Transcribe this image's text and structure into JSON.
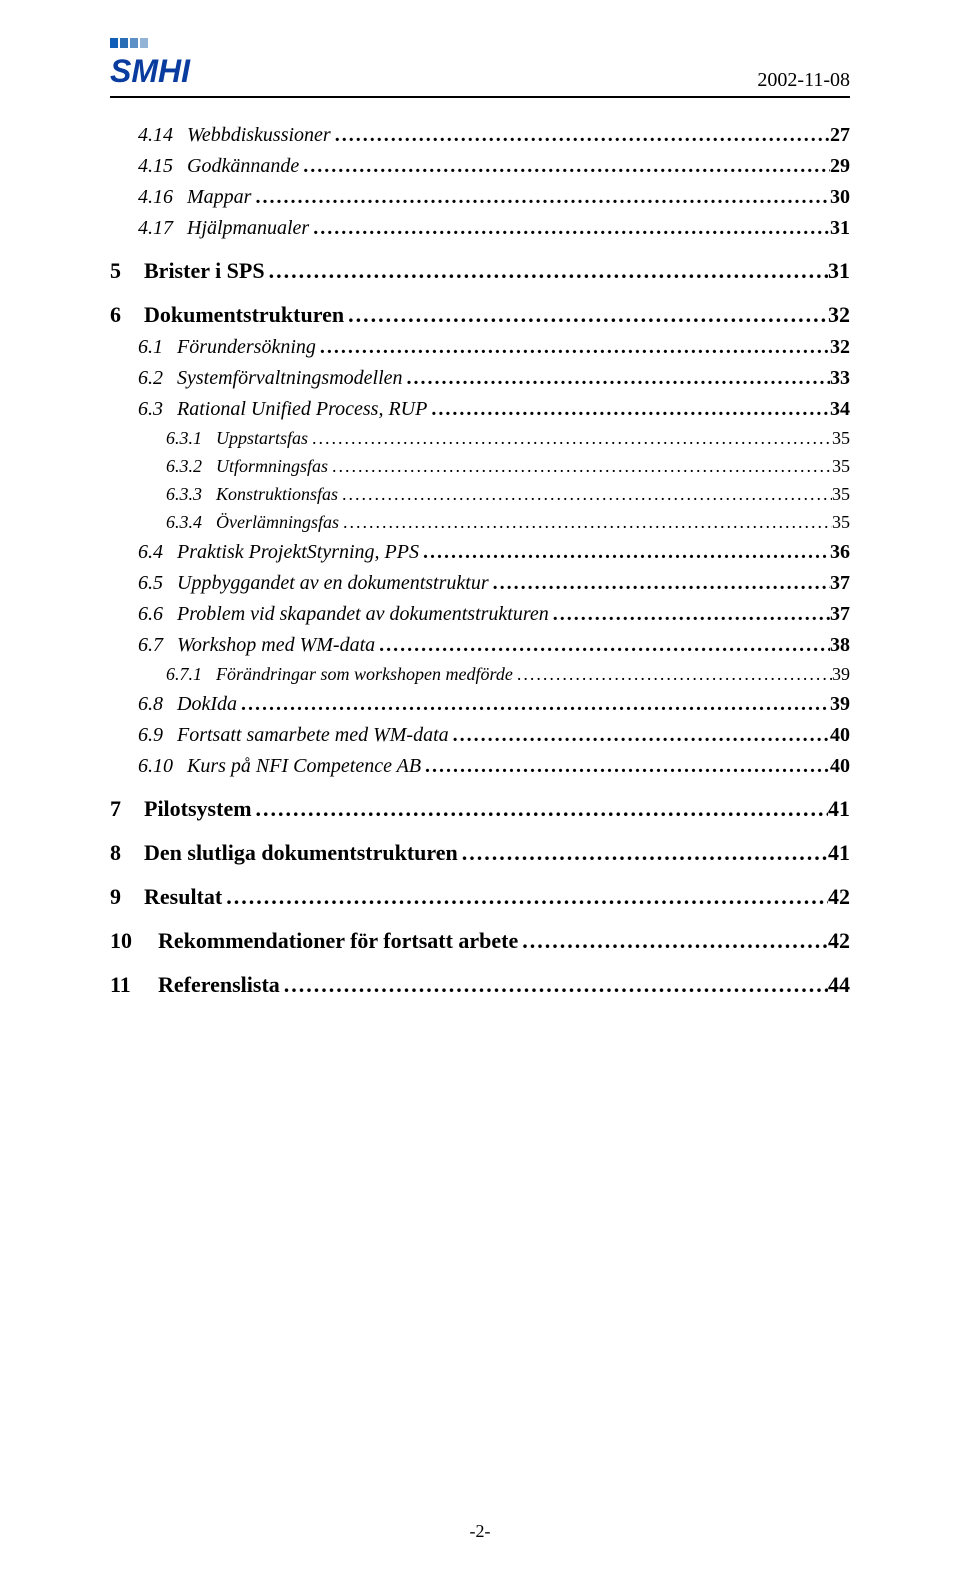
{
  "header": {
    "date": "2002-11-08",
    "logo_text": "SMHI",
    "logo_colors": {
      "letters": "#0a3ca0",
      "bars": [
        "#115fb8",
        "#2a6fb5",
        "#5c90c7",
        "#92b2d6"
      ]
    }
  },
  "toc": [
    {
      "level": 2,
      "num": "4.14",
      "title": "Webbdiskussioner",
      "page": "27",
      "style": "sub"
    },
    {
      "level": 2,
      "num": "4.15",
      "title": "Godkännande",
      "page": "29",
      "style": "sub"
    },
    {
      "level": 2,
      "num": "4.16",
      "title": "Mappar",
      "page": "30",
      "style": "sub"
    },
    {
      "level": 2,
      "num": "4.17",
      "title": "Hjälpmanualer",
      "page": "31",
      "style": "sub"
    },
    {
      "level": 1,
      "num": "5",
      "title": "Brister i SPS",
      "page": "31",
      "style": "h1"
    },
    {
      "level": 1,
      "num": "6",
      "title": "Dokumentstrukturen",
      "page": "32",
      "style": "h1"
    },
    {
      "level": 2,
      "num": "6.1",
      "title": "Förundersökning",
      "page": "32",
      "style": "sub"
    },
    {
      "level": 2,
      "num": "6.2",
      "title": "Systemförvaltningsmodellen",
      "page": "33",
      "style": "sub"
    },
    {
      "level": 2,
      "num": "6.3",
      "title": "Rational Unified Process, RUP",
      "page": "34",
      "style": "sub"
    },
    {
      "level": 3,
      "num": "6.3.1",
      "title": "Uppstartsfas",
      "page": "35",
      "style": "subsub"
    },
    {
      "level": 3,
      "num": "6.3.2",
      "title": "Utformningsfas",
      "page": "35",
      "style": "subsub"
    },
    {
      "level": 3,
      "num": "6.3.3",
      "title": "Konstruktionsfas",
      "page": "35",
      "style": "subsub"
    },
    {
      "level": 3,
      "num": "6.3.4",
      "title": "Överlämningsfas",
      "page": "35",
      "style": "subsub"
    },
    {
      "level": 2,
      "num": "6.4",
      "title": "Praktisk ProjektStyrning, PPS",
      "page": "36",
      "style": "sub"
    },
    {
      "level": 2,
      "num": "6.5",
      "title": "Uppbyggandet av en dokumentstruktur",
      "page": "37",
      "style": "sub"
    },
    {
      "level": 2,
      "num": "6.6",
      "title": "Problem vid skapandet av dokumentstrukturen",
      "page": "37",
      "style": "sub"
    },
    {
      "level": 2,
      "num": "6.7",
      "title": "Workshop med WM-data",
      "page": "38",
      "style": "sub"
    },
    {
      "level": 3,
      "num": "6.7.1",
      "title": "Förändringar som workshopen medförde",
      "page": "39",
      "style": "subsub"
    },
    {
      "level": 2,
      "num": "6.8",
      "title": "DokIda",
      "page": "39",
      "style": "sub"
    },
    {
      "level": 2,
      "num": "6.9",
      "title": "Fortsatt samarbete med WM-data",
      "page": "40",
      "style": "sub"
    },
    {
      "level": 2,
      "num": "6.10",
      "title": "Kurs på NFI Competence AB",
      "page": "40",
      "style": "sub"
    },
    {
      "level": 1,
      "num": "7",
      "title": "Pilotsystem",
      "page": "41",
      "style": "h1"
    },
    {
      "level": 1,
      "num": "8",
      "title": "Den slutliga dokumentstrukturen",
      "page": "41",
      "style": "h1"
    },
    {
      "level": 1,
      "num": "9",
      "title": "Resultat",
      "page": "42",
      "style": "h1"
    },
    {
      "level": 1,
      "num": "10",
      "title": "Rekommendationer för fortsatt arbete",
      "page": "42",
      "style": "h1"
    },
    {
      "level": 1,
      "num": "11",
      "title": "Referenslista",
      "page": "44",
      "style": "h1"
    }
  ],
  "footer": {
    "page_number": "-2-"
  }
}
